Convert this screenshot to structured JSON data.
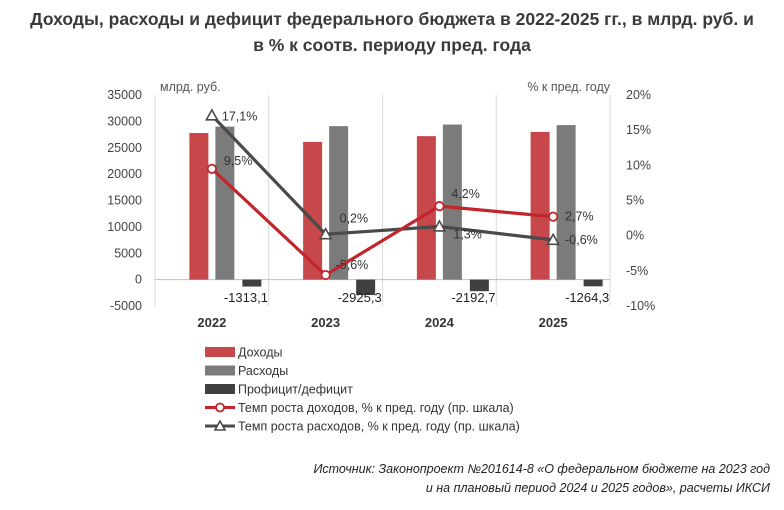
{
  "title": {
    "line1": "Доходы, расходы и дефицит федерального бюджета в 2022-2025 гг., в млрд. руб. и",
    "line2": "в % к соотв. периоду пред. года"
  },
  "source": {
    "line1": "Источник: Законопроект №201614-8 «О федеральном бюджете на 2023 год",
    "line2": "и на плановый период 2024 и 2025 годов», расчеты ИКСИ"
  },
  "colors": {
    "revenue": "#c8474b",
    "expenses": "#7b7b7b",
    "deficit": "#404040",
    "revenue_growth": "#c0262b",
    "expense_growth": "#4a4a4a",
    "grid": "#d9d9d9"
  },
  "chart_data": {
    "type": "bar",
    "categories": [
      "2022",
      "2023",
      "2024",
      "2025"
    ],
    "left_axis": {
      "label": "млрд. руб.",
      "ylim": [
        -5000,
        35000
      ],
      "ticks": [
        35000,
        30000,
        25000,
        20000,
        15000,
        10000,
        5000,
        0,
        -5000
      ]
    },
    "right_axis": {
      "label": "% к пред. году",
      "ylim": [
        -10,
        20
      ],
      "ticks": [
        20,
        15,
        10,
        5,
        0,
        -5,
        -10
      ],
      "tick_labels": [
        "20%",
        "15%",
        "10%",
        "5%",
        "0%",
        "-5%",
        "-10%"
      ]
    },
    "series": [
      {
        "name": "Доходы",
        "type": "bar",
        "axis": "left",
        "values": [
          27800,
          26100,
          27200,
          28000
        ]
      },
      {
        "name": "Расходы",
        "type": "bar",
        "axis": "left",
        "values": [
          29000,
          29100,
          29400,
          29300
        ]
      },
      {
        "name": "Профицит/дефицит",
        "type": "bar",
        "axis": "left",
        "values": [
          -1313.1,
          -2925.3,
          -2192.7,
          -1264.3
        ],
        "labels": [
          "-1313,1",
          "-2925,3",
          "-2192,7",
          "-1264,3"
        ]
      },
      {
        "name": "Темп роста доходов, % к пред. году  (пр. шкала)",
        "type": "line",
        "axis": "right",
        "marker": "circle",
        "values": [
          9.5,
          -5.6,
          4.2,
          2.7
        ],
        "labels": [
          "9,5%",
          "-5,6%",
          "4,2%",
          "2,7%"
        ]
      },
      {
        "name": "Темп роста расходов, % к пред. году (пр. шкала)",
        "type": "line",
        "axis": "right",
        "marker": "triangle",
        "values": [
          17.1,
          0.2,
          1.3,
          -0.6
        ],
        "labels": [
          "17,1%",
          "0,2%",
          "1,3%",
          "-0,6%"
        ]
      }
    ],
    "grid": "vertical-category-separators",
    "legend": "bottom"
  }
}
